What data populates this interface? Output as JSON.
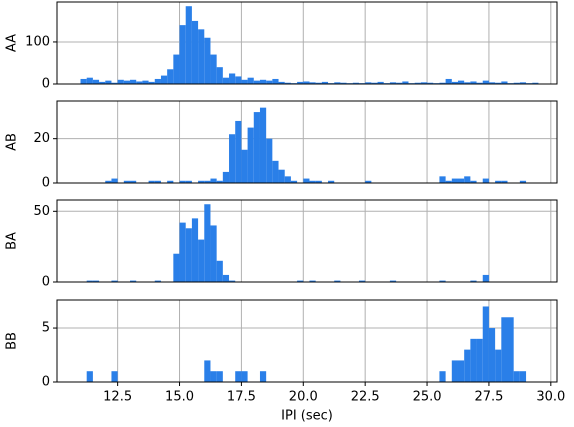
{
  "chart_data": [
    {
      "type": "histogram",
      "ylabel": "AA",
      "color": "#2a7fe8",
      "grid": true,
      "bins": [
        11,
        11.25,
        11.5,
        11.75,
        12,
        12.25,
        12.5,
        12.75,
        13,
        13.25,
        13.5,
        13.75,
        14,
        14.25,
        14.5,
        14.75,
        15,
        15.25,
        15.5,
        15.75,
        16,
        16.25,
        16.5,
        16.75,
        17,
        17.25,
        17.5,
        17.75,
        18,
        18.25,
        18.5,
        18.75,
        19,
        19.25,
        19.5,
        19.75,
        20,
        20.25,
        20.5,
        20.75,
        21,
        21.25,
        21.5,
        21.75,
        22,
        22.25,
        22.5,
        22.75,
        23,
        23.25,
        23.5,
        23.75,
        24,
        24.25,
        24.5,
        24.75,
        25,
        25.25,
        25.5,
        25.75,
        26,
        26.25,
        26.5,
        26.75,
        27,
        27.25,
        27.5,
        27.75,
        28,
        28.25,
        28.5,
        28.75,
        29,
        29.25,
        29.5
      ],
      "counts": [
        12,
        15,
        10,
        5,
        8,
        3,
        10,
        8,
        10,
        6,
        8,
        5,
        12,
        20,
        35,
        70,
        140,
        185,
        150,
        130,
        110,
        70,
        40,
        15,
        25,
        18,
        10,
        15,
        8,
        10,
        8,
        12,
        5,
        3,
        2,
        5,
        6,
        4,
        3,
        5,
        2,
        4,
        3,
        2,
        3,
        2,
        4,
        3,
        5,
        2,
        4,
        3,
        6,
        2,
        3,
        4,
        3,
        2,
        3,
        12,
        5,
        8,
        4,
        6,
        3,
        8,
        4,
        3,
        6,
        2,
        3,
        4,
        2,
        3
      ],
      "xlim": [
        10.05,
        30.25
      ],
      "ylim": [
        0,
        195
      ],
      "yticks": [
        0,
        100
      ]
    },
    {
      "type": "histogram",
      "ylabel": "AB",
      "color": "#2a7fe8",
      "grid": true,
      "bins": [
        11,
        11.25,
        11.5,
        11.75,
        12,
        12.25,
        12.5,
        12.75,
        13,
        13.25,
        13.5,
        13.75,
        14,
        14.25,
        14.5,
        14.75,
        15,
        15.25,
        15.5,
        15.75,
        16,
        16.25,
        16.5,
        16.75,
        17,
        17.25,
        17.5,
        17.75,
        18,
        18.25,
        18.5,
        18.75,
        19,
        19.25,
        19.5,
        19.75,
        20,
        20.25,
        20.5,
        20.75,
        21,
        21.25,
        21.5,
        21.75,
        22,
        22.25,
        22.5,
        22.75,
        23,
        23.25,
        23.5,
        23.75,
        24,
        24.25,
        24.5,
        24.75,
        25,
        25.25,
        25.5,
        25.75,
        26,
        26.25,
        26.5,
        26.75,
        27,
        27.25,
        27.5,
        27.75,
        28,
        28.25,
        28.5,
        28.75,
        29,
        29.25,
        29.5
      ],
      "counts": [
        0,
        0,
        0,
        0,
        1,
        2,
        0,
        1,
        1,
        0,
        0,
        1,
        1,
        0,
        1,
        0,
        1,
        1,
        0,
        1,
        1,
        2,
        1,
        5,
        22,
        28,
        15,
        25,
        32,
        34,
        20,
        10,
        6,
        3,
        1,
        0,
        2,
        1,
        1,
        0,
        1,
        0,
        0,
        0,
        0,
        0,
        1,
        0,
        0,
        0,
        0,
        0,
        0,
        0,
        0,
        0,
        0,
        0,
        3,
        1,
        2,
        2,
        3,
        1,
        0,
        2,
        0,
        1,
        1,
        0,
        0,
        1,
        0,
        0
      ],
      "xlim": [
        10.05,
        30.25
      ],
      "ylim": [
        0,
        37
      ],
      "yticks": [
        0,
        20
      ]
    },
    {
      "type": "histogram",
      "ylabel": "BA",
      "color": "#2a7fe8",
      "grid": true,
      "bins": [
        11,
        11.25,
        11.5,
        11.75,
        12,
        12.25,
        12.5,
        12.75,
        13,
        13.25,
        13.5,
        13.75,
        14,
        14.25,
        14.5,
        14.75,
        15,
        15.25,
        15.5,
        15.75,
        16,
        16.25,
        16.5,
        16.75,
        17,
        17.25,
        17.5,
        17.75,
        18,
        18.25,
        18.5,
        18.75,
        19,
        19.25,
        19.5,
        19.75,
        20,
        20.25,
        20.5,
        20.75,
        21,
        21.25,
        21.5,
        21.75,
        22,
        22.25,
        22.5,
        22.75,
        23,
        23.25,
        23.5,
        23.75,
        24,
        24.25,
        24.5,
        24.75,
        25,
        25.25,
        25.5,
        25.75,
        26,
        26.25,
        26.5,
        26.75,
        27,
        27.25,
        27.5,
        27.75,
        28,
        28.25,
        28.5,
        28.75,
        29,
        29.25,
        29.5
      ],
      "counts": [
        0,
        1,
        1,
        0,
        0,
        1,
        0,
        0,
        1,
        0,
        0,
        0,
        1,
        0,
        0,
        20,
        42,
        38,
        45,
        30,
        55,
        40,
        15,
        5,
        1,
        0,
        0,
        0,
        0,
        0,
        0,
        0,
        0,
        0,
        0,
        1,
        0,
        1,
        0,
        0,
        0,
        1,
        0,
        0,
        0,
        1,
        0,
        0,
        0,
        0,
        1,
        0,
        0,
        0,
        0,
        0,
        0,
        0,
        1,
        0,
        0,
        0,
        0,
        1,
        0,
        5,
        0,
        0,
        0,
        0,
        0,
        0,
        0,
        0
      ],
      "xlim": [
        10.05,
        30.25
      ],
      "ylim": [
        0,
        58
      ],
      "yticks": [
        0,
        50
      ]
    },
    {
      "type": "histogram",
      "ylabel": "BB",
      "xlabel": "IPI (sec)",
      "color": "#2a7fe8",
      "grid": true,
      "bins": [
        11,
        11.25,
        11.5,
        11.75,
        12,
        12.25,
        12.5,
        12.75,
        13,
        13.25,
        13.5,
        13.75,
        14,
        14.25,
        14.5,
        14.75,
        15,
        15.25,
        15.5,
        15.75,
        16,
        16.25,
        16.5,
        16.75,
        17,
        17.25,
        17.5,
        17.75,
        18,
        18.25,
        18.5,
        18.75,
        19,
        19.25,
        19.5,
        19.75,
        20,
        20.25,
        20.5,
        20.75,
        21,
        21.25,
        21.5,
        21.75,
        22,
        22.25,
        22.5,
        22.75,
        23,
        23.25,
        23.5,
        23.75,
        24,
        24.25,
        24.5,
        24.75,
        25,
        25.25,
        25.5,
        25.75,
        26,
        26.25,
        26.5,
        26.75,
        27,
        27.25,
        27.5,
        27.75,
        28,
        28.25,
        28.5,
        28.75,
        29,
        29.25,
        29.5
      ],
      "counts": [
        0,
        1,
        0,
        0,
        0,
        1,
        0,
        0,
        0,
        0,
        0,
        0,
        0,
        0,
        0,
        0,
        0,
        0,
        0,
        0,
        2,
        1,
        1,
        0,
        0,
        1,
        1,
        0,
        0,
        1,
        0,
        0,
        0,
        0,
        0,
        0,
        0,
        0,
        0,
        0,
        0,
        0,
        0,
        0,
        0,
        0,
        0,
        0,
        0,
        0,
        0,
        0,
        0,
        0,
        0,
        0,
        0,
        0,
        1,
        0,
        2,
        2,
        3,
        4,
        4,
        7,
        5,
        3,
        6,
        6,
        1,
        1,
        0,
        0
      ],
      "xlim": [
        10.05,
        30.25
      ],
      "ylim": [
        0,
        7.6
      ],
      "yticks": [
        0,
        5
      ],
      "xticks": [
        12.5,
        {
          "value": 15,
          "label": "15.0"
        },
        17.5,
        {
          "value": 20,
          "label": "20.0"
        },
        22.5,
        {
          "value": 25,
          "label": "25.0"
        },
        27.5,
        {
          "value": 30,
          "label": "30.0"
        }
      ]
    }
  ]
}
